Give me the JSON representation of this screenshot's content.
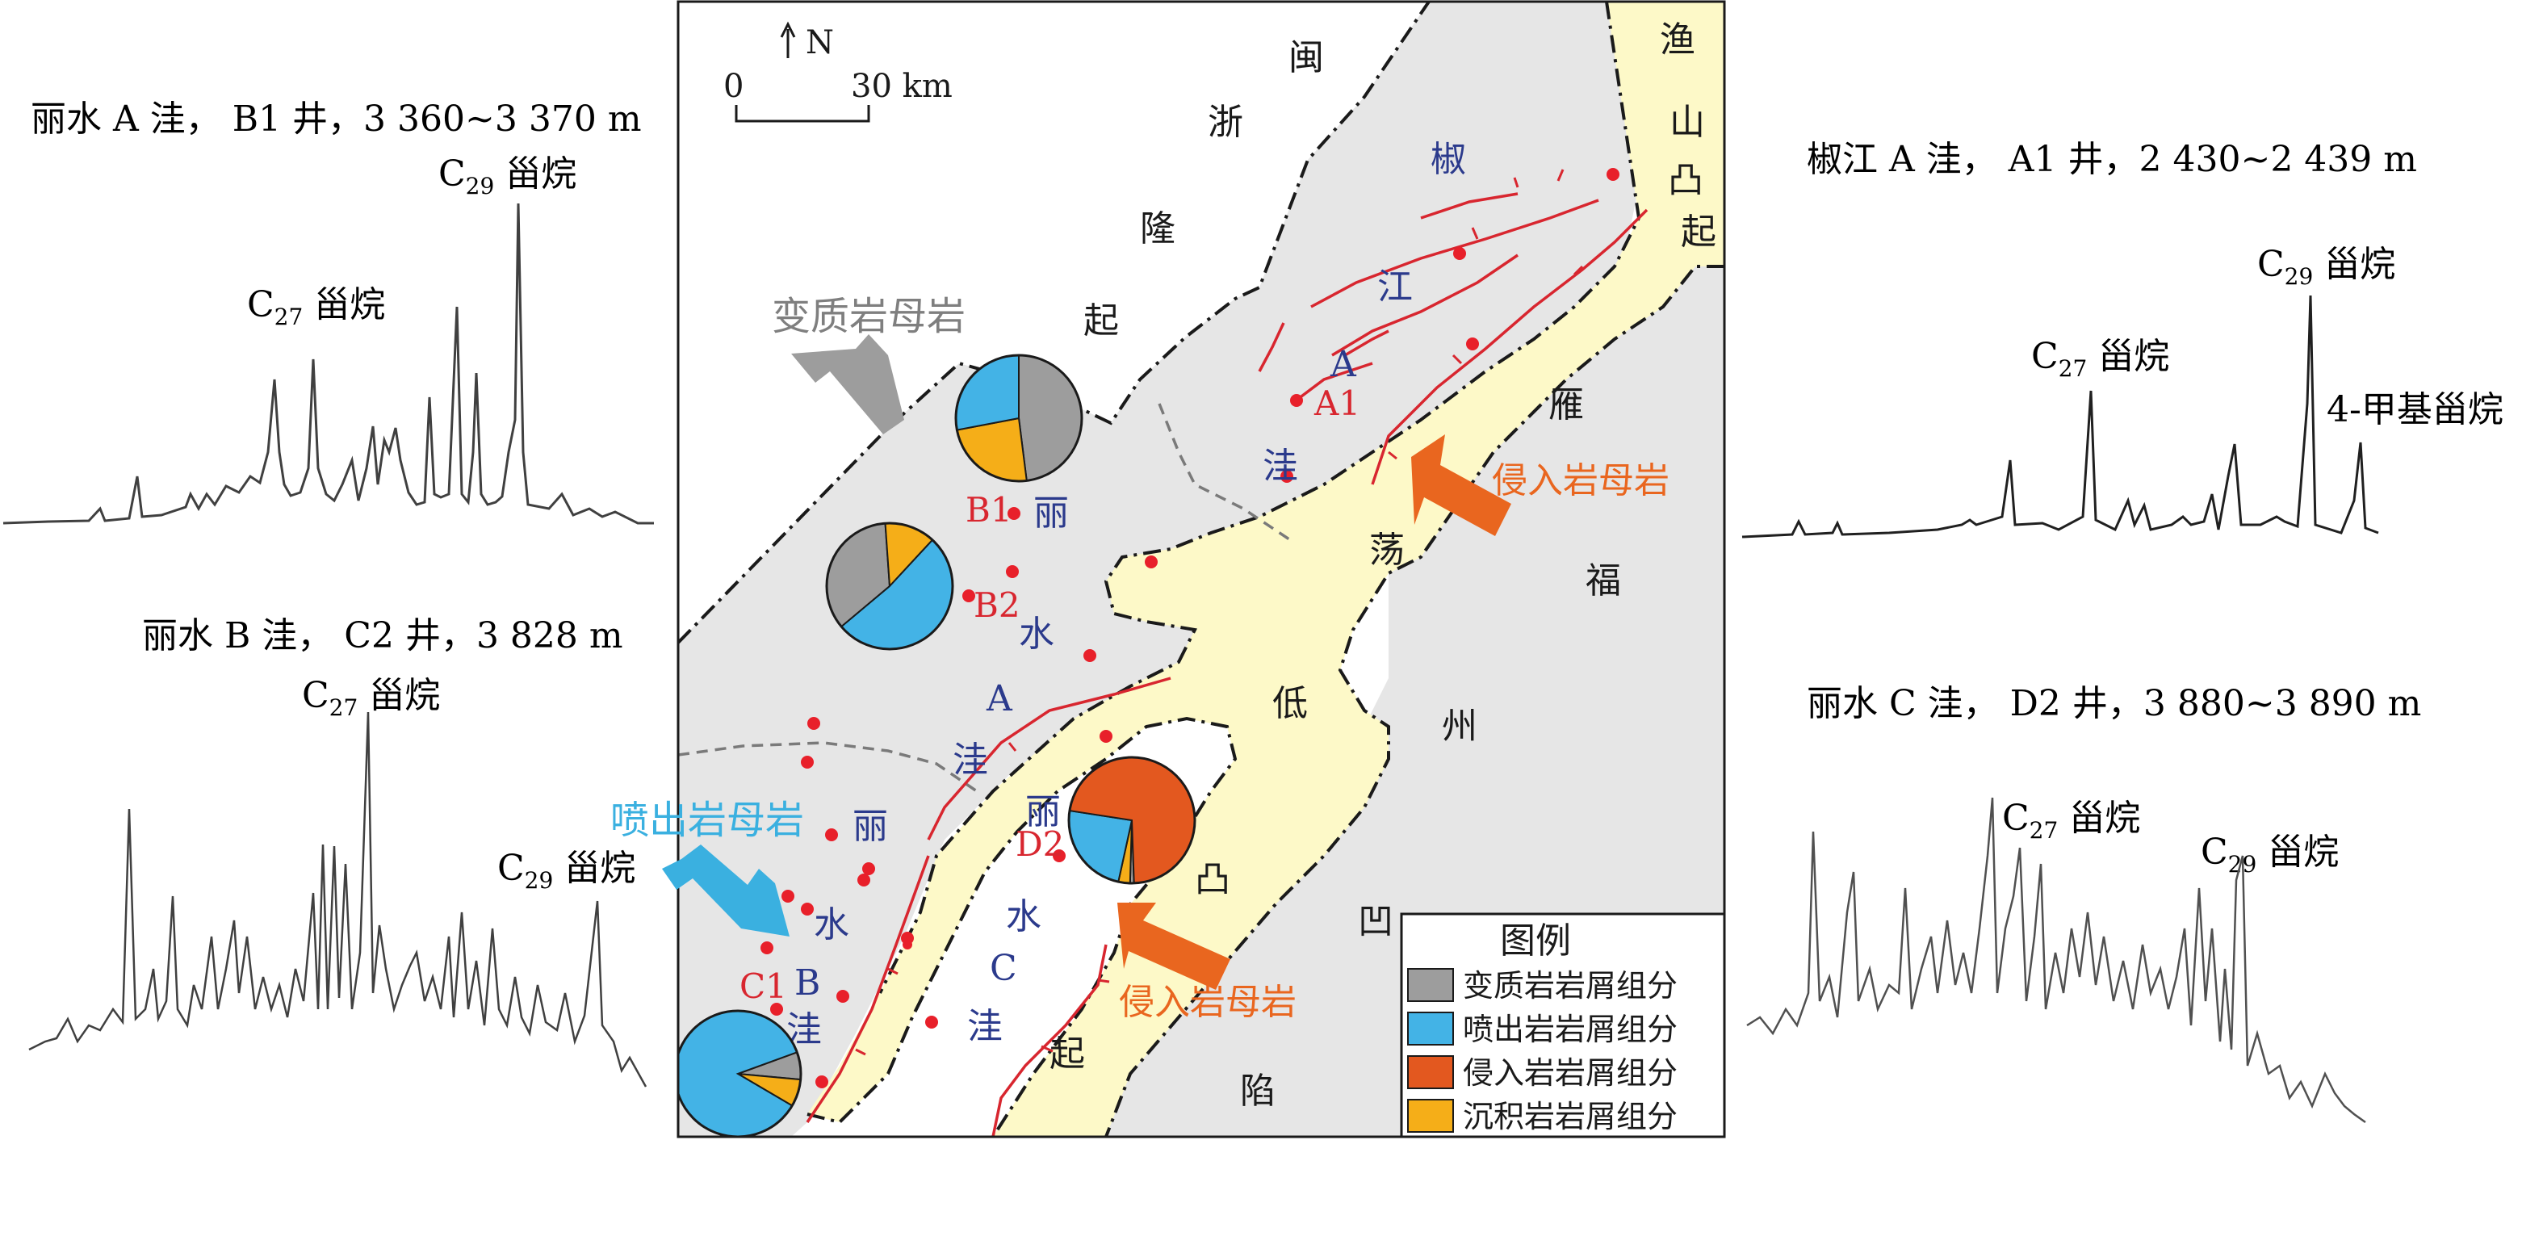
{
  "colors": {
    "map_background": "#e6e6e6",
    "uplift_fill": "#fdf9c8",
    "fault": "#d8262f",
    "well_dot": "#e8202a",
    "basin_label": "#2b3a8c",
    "well_label": "#d8262f",
    "metamorphic": "#9d9d9d",
    "extrusive": "#43b3e6",
    "intrusive": "#e3581f",
    "sedimentary": "#f5ae18",
    "label_gray": "#7f7f7f",
    "label_blue": "#3ab0e0",
    "label_orange": "#e9661f"
  },
  "map": {
    "scale": {
      "north": "N",
      "zero": "0",
      "distance": "30 km"
    },
    "regions": {
      "min": "闽",
      "zhe": "浙",
      "long": "隆",
      "qi1": "起",
      "yu": "渔",
      "shan": "山",
      "tu1": "凸",
      "qi2": "起",
      "yan": "雁",
      "dang": "荡",
      "di": "低",
      "tu2": "凸",
      "qi3": "起",
      "fu": "福",
      "zhou": "州",
      "ao": "凹",
      "xian": "陷"
    },
    "basins": {
      "jiao": "椒",
      "jiang": "江",
      "a_a": "A",
      "wa_a": "洼",
      "li1": "丽",
      "shui1": "水",
      "a1": "A",
      "wa1": "洼",
      "li2": "丽",
      "shui2": "水",
      "b": "B",
      "wa2": "洼",
      "li3": "丽",
      "shui3": "水",
      "c": "C",
      "wa3": "洼"
    },
    "wells": [
      "A1",
      "B1",
      "B2",
      "C1",
      "D2"
    ],
    "source_labels": {
      "metamorphic": "变质岩母岩",
      "extrusive": "喷出岩母岩",
      "intrusive_a": "侵入岩母岩",
      "intrusive_b": "侵入岩母岩"
    }
  },
  "legend": {
    "title": "图例",
    "items": [
      {
        "label": "变质岩岩屑组分",
        "color": "#9d9d9d"
      },
      {
        "label": "喷出岩岩屑组分",
        "color": "#43b3e6"
      },
      {
        "label": "侵入岩岩屑组分",
        "color": "#e3581f"
      },
      {
        "label": "沉积岩岩屑组分",
        "color": "#f5ae18"
      }
    ]
  },
  "pies": [
    {
      "well": "B1",
      "metamorphic": 0.48,
      "extrusive": 0.28,
      "intrusive": 0.0,
      "sedimentary": 0.24
    },
    {
      "well": "B2",
      "metamorphic": 0.35,
      "extrusive": 0.52,
      "intrusive": 0.0,
      "sedimentary": 0.13
    },
    {
      "well": "D2",
      "metamorphic": 0.01,
      "extrusive": 0.24,
      "intrusive": 0.72,
      "sedimentary": 0.03
    },
    {
      "well": "C1",
      "metamorphic": 0.07,
      "extrusive": 0.86,
      "intrusive": 0.0,
      "sedimentary": 0.07
    }
  ],
  "chromatograms": {
    "b1": {
      "title": "丽水 A 洼， B1 井，3 360~3 370 m",
      "c27": "C",
      "c27_sub": "27",
      "c27_suf": " 甾烷",
      "c29": "C",
      "c29_sub": "29",
      "c29_suf": " 甾烷"
    },
    "c2": {
      "title": "丽水 B 洼， C2 井，3 828 m",
      "c27": "C",
      "c27_sub": "27",
      "c27_suf": " 甾烷",
      "c29": "C",
      "c29_sub": "29",
      "c29_suf": " 甾烷"
    },
    "a1": {
      "title": "椒江 A 洼， A1 井，2 430~2 439 m",
      "c27": "C",
      "c27_sub": "27",
      "c27_suf": " 甾烷",
      "c29": "C",
      "c29_sub": "29",
      "c29_suf": " 甾烷",
      "methyl": "4-甲基甾烷"
    },
    "d2": {
      "title": "丽水 C 洼， D2 井，3 880~3 890 m",
      "c27": "C",
      "c27_sub": "27",
      "c27_suf": " 甾烷",
      "c29": "C",
      "c29_sub": "29",
      "c29_suf": " 甾烷"
    }
  }
}
